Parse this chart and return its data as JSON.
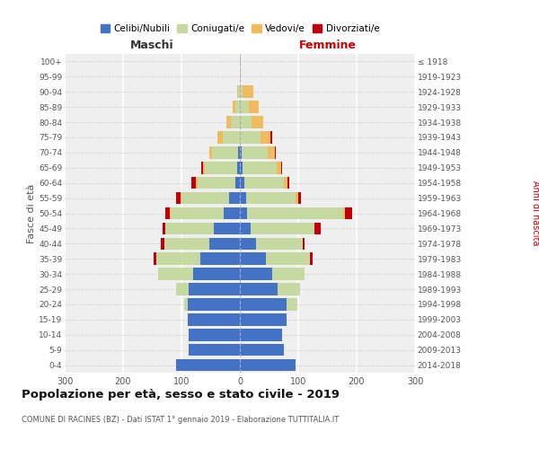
{
  "age_groups": [
    "0-4",
    "5-9",
    "10-14",
    "15-19",
    "20-24",
    "25-29",
    "30-34",
    "35-39",
    "40-44",
    "45-49",
    "50-54",
    "55-59",
    "60-64",
    "65-69",
    "70-74",
    "75-79",
    "80-84",
    "85-89",
    "90-94",
    "95-99",
    "100+"
  ],
  "birth_years": [
    "2014-2018",
    "2009-2013",
    "2004-2008",
    "1999-2003",
    "1994-1998",
    "1989-1993",
    "1984-1988",
    "1979-1983",
    "1974-1978",
    "1969-1973",
    "1964-1968",
    "1959-1963",
    "1954-1958",
    "1949-1953",
    "1944-1948",
    "1939-1943",
    "1934-1938",
    "1929-1933",
    "1924-1928",
    "1919-1923",
    "≤ 1918"
  ],
  "male": {
    "celibi": [
      110,
      88,
      88,
      90,
      90,
      88,
      80,
      68,
      52,
      45,
      28,
      18,
      8,
      5,
      3,
      0,
      0,
      0,
      0,
      0,
      0
    ],
    "coniugati": [
      0,
      0,
      0,
      0,
      5,
      22,
      60,
      75,
      78,
      82,
      90,
      82,
      65,
      55,
      45,
      30,
      15,
      8,
      3,
      0,
      0
    ],
    "vedovi": [
      0,
      0,
      0,
      0,
      0,
      0,
      0,
      0,
      0,
      0,
      2,
      2,
      2,
      3,
      5,
      8,
      8,
      5,
      2,
      0,
      0
    ],
    "divorziati": [
      0,
      0,
      0,
      0,
      0,
      0,
      0,
      5,
      5,
      5,
      8,
      8,
      8,
      3,
      0,
      0,
      0,
      0,
      0,
      0,
      0
    ]
  },
  "female": {
    "nubili": [
      95,
      75,
      72,
      80,
      80,
      65,
      55,
      45,
      28,
      18,
      12,
      10,
      8,
      5,
      3,
      0,
      0,
      0,
      0,
      0,
      0
    ],
    "coniugate": [
      0,
      0,
      0,
      0,
      18,
      38,
      55,
      75,
      80,
      110,
      165,
      85,
      68,
      58,
      45,
      35,
      20,
      15,
      5,
      0,
      0
    ],
    "vedove": [
      0,
      0,
      0,
      0,
      0,
      0,
      0,
      0,
      0,
      0,
      3,
      5,
      5,
      8,
      12,
      18,
      20,
      18,
      18,
      2,
      2
    ],
    "divorziate": [
      0,
      0,
      0,
      0,
      0,
      0,
      0,
      5,
      3,
      10,
      12,
      5,
      3,
      2,
      2,
      2,
      0,
      0,
      0,
      0,
      0
    ]
  },
  "colors": {
    "celibi": "#4472C4",
    "coniugati": "#C5D9A0",
    "vedovi": "#F0BB5F",
    "divorziati": "#C0000C"
  },
  "xlim": 300,
  "title": "Popolazione per età, sesso e stato civile - 2019",
  "subtitle": "COMUNE DI RACINES (BZ) - Dati ISTAT 1° gennaio 2019 - Elaborazione TUTTITALIA.IT",
  "ylabel_left": "Fasce di età",
  "ylabel_right": "Anni di nascita",
  "xlabel_left": "Maschi",
  "xlabel_right": "Femmine",
  "legend_labels": [
    "Celibi/Nubili",
    "Coniugati/e",
    "Vedovi/e",
    "Divorziati/e"
  ],
  "bg_color": "#ffffff",
  "plot_bg": "#efefef"
}
